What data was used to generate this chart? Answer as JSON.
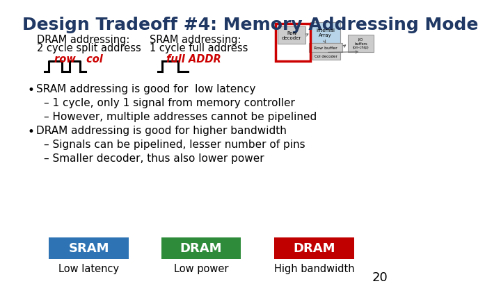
{
  "title": "Design Tradeoff #4: Memory Addressing Mode",
  "title_color": "#1F3864",
  "title_fontsize": 18,
  "bg_color": "#FFFFFF",
  "dram_label": "DRAM addressing:",
  "dram_sublabel": "2 cycle split address",
  "sram_label": "SRAM addressing:",
  "sram_sublabel": "1 cycle full address",
  "dram_signal_label": "row   col",
  "sram_signal_label": "full ADDR",
  "signal_label_color": "#CC0000",
  "bullet_points": [
    {
      "text": "SRAM addressing is good for  low latency",
      "indent": 0
    },
    {
      "text": "– 1 cycle, only 1 signal from memory controller",
      "indent": 1
    },
    {
      "text": "– However, multiple addresses cannot be pipelined",
      "indent": 1
    },
    {
      "text": "DRAM addressing is good for higher bandwidth",
      "indent": 0
    },
    {
      "text": "– Signals can be pipelined, lesser number of pins",
      "indent": 1
    },
    {
      "text": "– Smaller decoder, thus also lower power",
      "indent": 1
    }
  ],
  "boxes": [
    {
      "label": "SRAM",
      "sublabel": "Low latency",
      "color": "#2E74B5"
    },
    {
      "label": "DRAM",
      "sublabel": "Low power",
      "color": "#2E8B3A"
    },
    {
      "label": "DRAM",
      "sublabel": "High bandwidth",
      "color": "#C00000"
    }
  ],
  "page_number": "20"
}
